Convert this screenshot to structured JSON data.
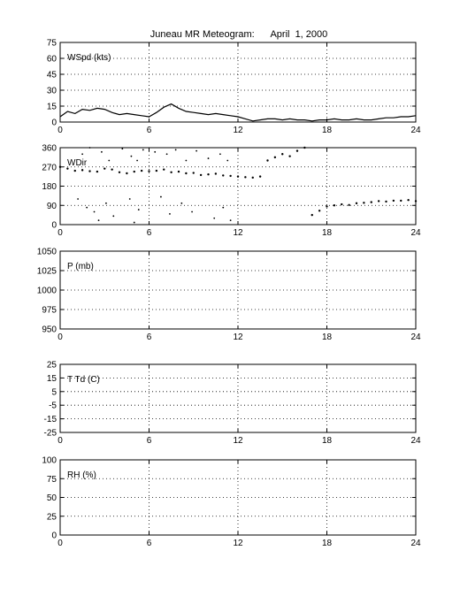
{
  "title": "Juneau MR Meteogram:      April  1, 2000",
  "chart_data": [
    {
      "type": "line",
      "label": "WSpd (kts)",
      "xlim": [
        0,
        24
      ],
      "xticks": [
        0,
        6,
        12,
        18,
        24
      ],
      "ylim": [
        0,
        75
      ],
      "yticks": [
        0,
        15,
        30,
        45,
        60,
        75
      ],
      "grid": true,
      "points": [
        [
          0,
          5
        ],
        [
          0.5,
          10
        ],
        [
          1,
          8
        ],
        [
          1.5,
          12
        ],
        [
          2,
          11
        ],
        [
          2.5,
          13
        ],
        [
          3,
          12
        ],
        [
          3.5,
          9
        ],
        [
          4,
          7
        ],
        [
          4.5,
          8
        ],
        [
          5,
          7
        ],
        [
          5.5,
          6
        ],
        [
          6,
          5
        ],
        [
          6.5,
          9
        ],
        [
          7,
          14
        ],
        [
          7.5,
          17
        ],
        [
          8,
          13
        ],
        [
          8.5,
          10
        ],
        [
          9,
          9
        ],
        [
          9.5,
          8
        ],
        [
          10,
          7
        ],
        [
          10.5,
          8
        ],
        [
          11,
          7
        ],
        [
          11.5,
          6
        ],
        [
          12,
          5
        ],
        [
          12.5,
          3
        ],
        [
          13,
          1
        ],
        [
          13.5,
          2
        ],
        [
          14,
          3
        ],
        [
          14.5,
          3
        ],
        [
          15,
          2
        ],
        [
          15.5,
          3
        ],
        [
          16,
          2
        ],
        [
          16.5,
          2
        ],
        [
          17,
          1
        ],
        [
          17.5,
          2
        ],
        [
          18,
          2
        ],
        [
          18.5,
          3
        ],
        [
          19,
          2
        ],
        [
          19.5,
          2
        ],
        [
          20,
          3
        ],
        [
          20.5,
          2
        ],
        [
          21,
          2
        ],
        [
          21.5,
          3
        ],
        [
          22,
          4
        ],
        [
          22.5,
          4
        ],
        [
          23,
          5
        ],
        [
          23.5,
          5
        ],
        [
          24,
          6
        ]
      ]
    },
    {
      "type": "scatter",
      "label": "WDir",
      "xlim": [
        0,
        24
      ],
      "xticks": [
        0,
        6,
        12,
        18,
        24
      ],
      "ylim": [
        0,
        360
      ],
      "yticks": [
        0,
        90,
        180,
        270,
        360
      ],
      "grid": true,
      "points": [
        [
          0,
          270
        ],
        [
          0.5,
          262
        ],
        [
          1,
          252
        ],
        [
          1.5,
          255
        ],
        [
          2,
          250
        ],
        [
          2.5,
          248
        ],
        [
          3,
          262
        ],
        [
          3.5,
          258
        ],
        [
          4,
          245
        ],
        [
          4.5,
          240
        ],
        [
          5,
          248
        ],
        [
          5.5,
          252
        ],
        [
          6,
          250
        ],
        [
          6.5,
          252
        ],
        [
          7,
          258
        ],
        [
          7.5,
          245
        ],
        [
          8,
          248
        ],
        [
          8.5,
          240
        ],
        [
          9,
          242
        ],
        [
          9.5,
          232
        ],
        [
          10,
          235
        ],
        [
          10.5,
          238
        ],
        [
          11,
          230
        ],
        [
          11.5,
          228
        ],
        [
          12,
          225
        ],
        [
          12.5,
          222
        ],
        [
          13,
          220
        ],
        [
          13.5,
          225
        ],
        [
          14,
          300
        ],
        [
          14.5,
          315
        ],
        [
          15,
          330
        ],
        [
          15.5,
          320
        ],
        [
          16,
          345
        ],
        [
          16.5,
          360
        ],
        [
          17,
          45
        ],
        [
          17.5,
          65
        ],
        [
          18,
          85
        ],
        [
          18.5,
          90
        ],
        [
          19,
          95
        ],
        [
          19.5,
          92
        ],
        [
          20,
          100
        ],
        [
          20.5,
          102
        ],
        [
          21,
          105
        ],
        [
          21.5,
          110
        ],
        [
          22,
          108
        ],
        [
          22.5,
          112
        ],
        [
          23,
          112
        ],
        [
          23.5,
          115
        ],
        [
          24,
          110
        ]
      ],
      "scattered_points": [
        [
          1.5,
          330
        ],
        [
          2.0,
          360
        ],
        [
          2.8,
          340
        ],
        [
          3.3,
          300
        ],
        [
          4.2,
          355
        ],
        [
          4.8,
          320
        ],
        [
          5.2,
          300
        ],
        [
          5.6,
          350
        ],
        [
          6.4,
          340
        ],
        [
          7.2,
          330
        ],
        [
          7.8,
          350
        ],
        [
          8.5,
          300
        ],
        [
          9.2,
          345
        ],
        [
          10.0,
          310
        ],
        [
          10.8,
          330
        ],
        [
          11.3,
          300
        ],
        [
          1.8,
          80
        ],
        [
          2.3,
          60
        ],
        [
          3.1,
          100
        ],
        [
          3.6,
          40
        ],
        [
          4.7,
          120
        ],
        [
          5.3,
          70
        ],
        [
          6.8,
          130
        ],
        [
          7.4,
          50
        ],
        [
          8.2,
          100
        ],
        [
          8.9,
          60
        ],
        [
          10.4,
          30
        ],
        [
          11.0,
          80
        ],
        [
          11.5,
          20
        ],
        [
          1.2,
          120
        ],
        [
          2.6,
          20
        ],
        [
          5.0,
          10
        ]
      ]
    },
    {
      "type": "line",
      "label": "P (mb)",
      "xlim": [
        0,
        24
      ],
      "xticks": [
        0,
        6,
        12,
        18,
        24
      ],
      "ylim": [
        950,
        1050
      ],
      "yticks": [
        950,
        975,
        1000,
        1025,
        1050
      ],
      "grid": true,
      "points": []
    },
    {
      "type": "line",
      "label": "T Td (C)",
      "xlim": [
        0,
        24
      ],
      "xticks": [
        0,
        6,
        12,
        18,
        24
      ],
      "ylim": [
        -25,
        25
      ],
      "yticks": [
        -25,
        -15,
        -5,
        5,
        15,
        25
      ],
      "grid": true,
      "points": []
    },
    {
      "type": "line",
      "label": "RH (%)",
      "xlim": [
        0,
        24
      ],
      "xticks": [
        0,
        6,
        12,
        18,
        24
      ],
      "ylim": [
        0,
        100
      ],
      "yticks": [
        0,
        25,
        50,
        75,
        100
      ],
      "grid": true,
      "points": []
    }
  ]
}
